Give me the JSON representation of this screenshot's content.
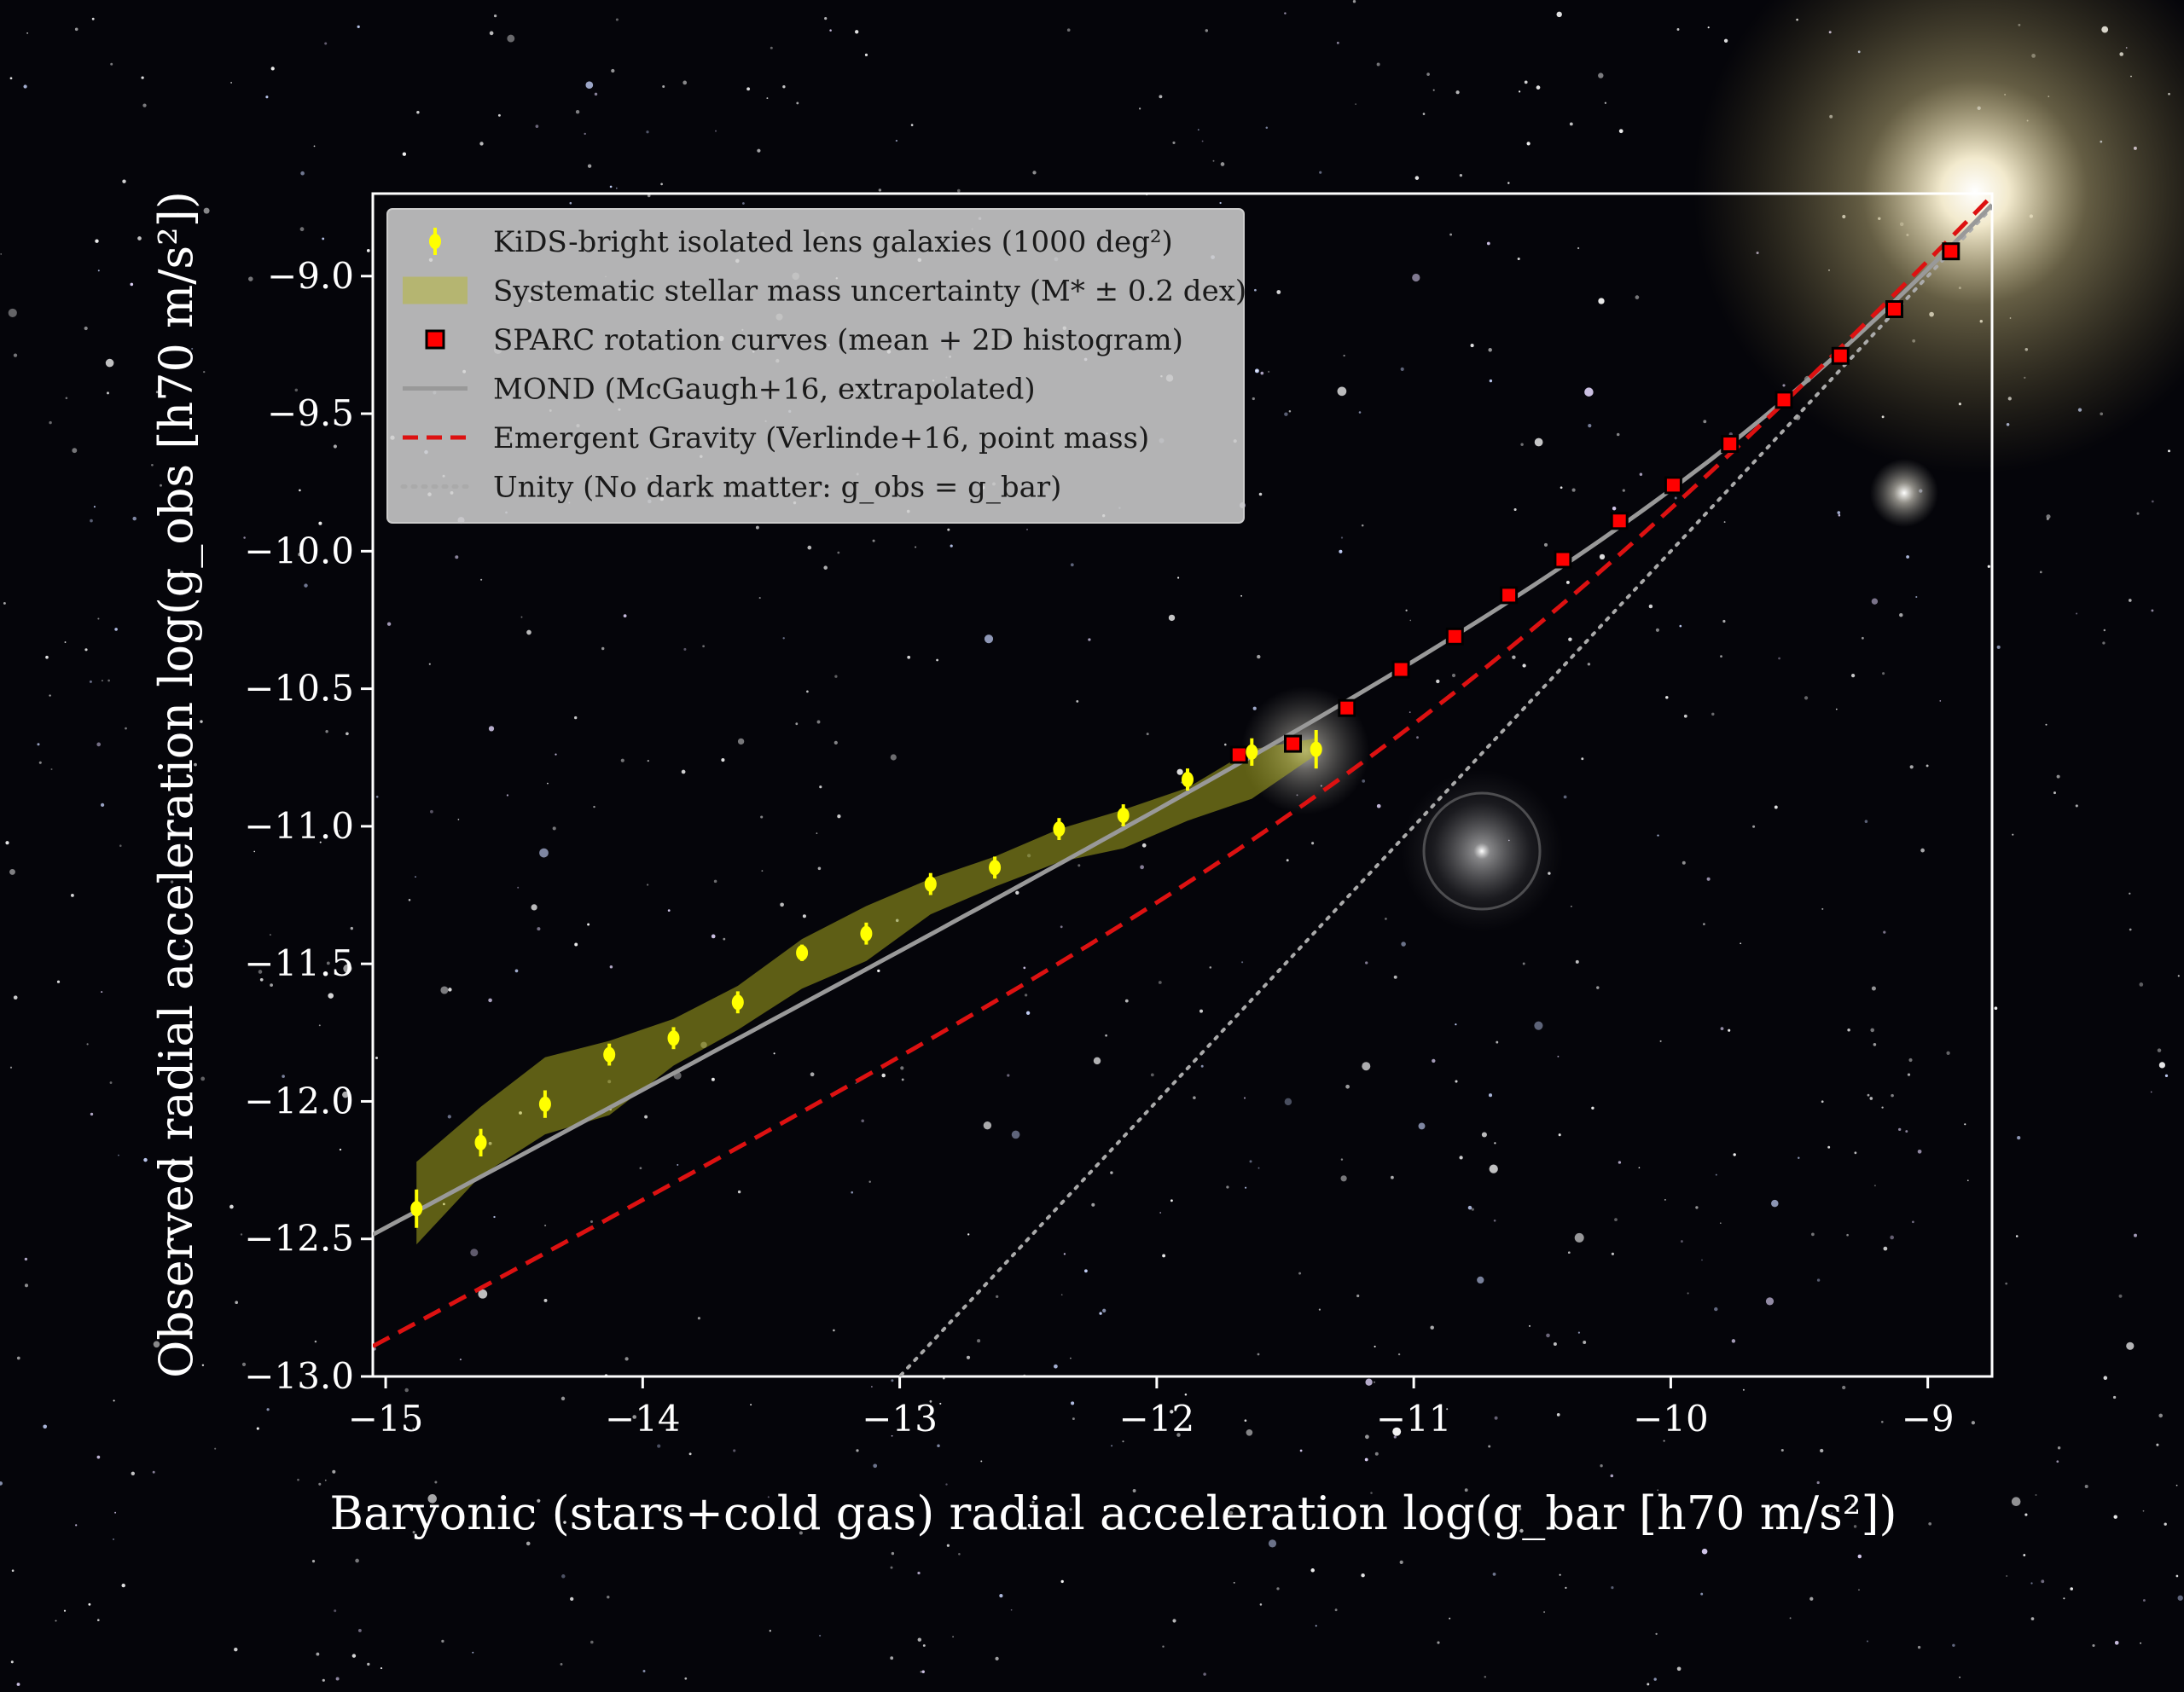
{
  "chart_data": {
    "type": "scatter",
    "title": "",
    "xlabel": "Baryonic (stars+cold gas) radial acceleration log(g_bar [h70 m/s²])",
    "ylabel": "Observed radial acceleration log(g_obs [h70 m/s²])",
    "xlim": [
      -15.05,
      -8.75
    ],
    "ylim": [
      -13.0,
      -8.7
    ],
    "xticks": [
      -15,
      -14,
      -13,
      -12,
      -11,
      -10,
      -9
    ],
    "yticks": [
      -13.0,
      -12.5,
      -12.0,
      -11.5,
      -11.0,
      -10.5,
      -10.0,
      -9.5,
      -9.0
    ],
    "xtick_labels": [
      "−15",
      "−14",
      "−13",
      "−12",
      "−11",
      "−10",
      "−9"
    ],
    "ytick_labels": [
      "−13.0",
      "−12.5",
      "−12.0",
      "−11.5",
      "−11.0",
      "−10.5",
      "−10.0",
      "−9.5",
      "−9.0"
    ],
    "grid": false,
    "legend_position": "top-left",
    "colors": {
      "kids": "#ffff00",
      "band": "#b8b820",
      "sparc": "#ff0000",
      "mond": "#999999",
      "eg": "#dd1111",
      "unity": "#aaaaaa"
    },
    "series": [
      {
        "name": "KiDS-bright isolated lens galaxies (1000 deg²)",
        "marker": "circle-errorbar",
        "x": [
          -14.88,
          -14.63,
          -14.38,
          -14.13,
          -13.88,
          -13.63,
          -13.38,
          -13.13,
          -12.88,
          -12.63,
          -12.38,
          -12.13,
          -11.88,
          -11.63,
          -11.38
        ],
        "y": [
          -12.39,
          -12.15,
          -12.01,
          -11.83,
          -11.77,
          -11.64,
          -11.46,
          -11.39,
          -11.21,
          -11.15,
          -11.01,
          -10.96,
          -10.83,
          -10.73,
          -10.72
        ],
        "err": [
          0.07,
          0.05,
          0.05,
          0.04,
          0.04,
          0.04,
          0.03,
          0.04,
          0.04,
          0.04,
          0.04,
          0.04,
          0.04,
          0.05,
          0.07
        ]
      },
      {
        "name": "Systematic stellar mass uncertainty (M* ± 0.2 dex)",
        "marker": "band",
        "x": [
          -14.88,
          -14.63,
          -14.38,
          -14.13,
          -13.88,
          -13.63,
          -13.38,
          -13.13,
          -12.88,
          -12.63,
          -12.38,
          -12.13,
          -11.88,
          -11.63,
          -11.38
        ],
        "upper": [
          -12.22,
          -12.02,
          -11.84,
          -11.78,
          -11.7,
          -11.58,
          -11.41,
          -11.29,
          -11.19,
          -11.11,
          -11.01,
          -10.94,
          -10.86,
          -10.72,
          -10.68
        ],
        "lower": [
          -12.52,
          -12.27,
          -12.12,
          -12.05,
          -11.87,
          -11.74,
          -11.59,
          -11.49,
          -11.32,
          -11.22,
          -11.13,
          -11.08,
          -10.98,
          -10.9,
          -10.74
        ]
      },
      {
        "name": "SPARC rotation curves (mean + 2D histogram)",
        "marker": "square",
        "x": [
          -11.68,
          -11.47,
          -11.26,
          -11.05,
          -10.84,
          -10.63,
          -10.42,
          -10.2,
          -9.99,
          -9.77,
          -9.56,
          -9.34,
          -9.13,
          -8.91
        ],
        "y": [
          -10.74,
          -10.7,
          -10.57,
          -10.43,
          -10.31,
          -10.16,
          -10.03,
          -9.89,
          -9.76,
          -9.61,
          -9.45,
          -9.29,
          -9.12,
          -8.91
        ]
      },
      {
        "name": "MOND (McGaugh+16, extrapolated)",
        "marker": "line-solid"
      },
      {
        "name": "Emergent Gravity (Verlinde+16, point mass)",
        "marker": "line-dashed"
      },
      {
        "name": "Unity (No dark matter: g_obs = g_bar)",
        "marker": "line-dotted"
      }
    ]
  }
}
